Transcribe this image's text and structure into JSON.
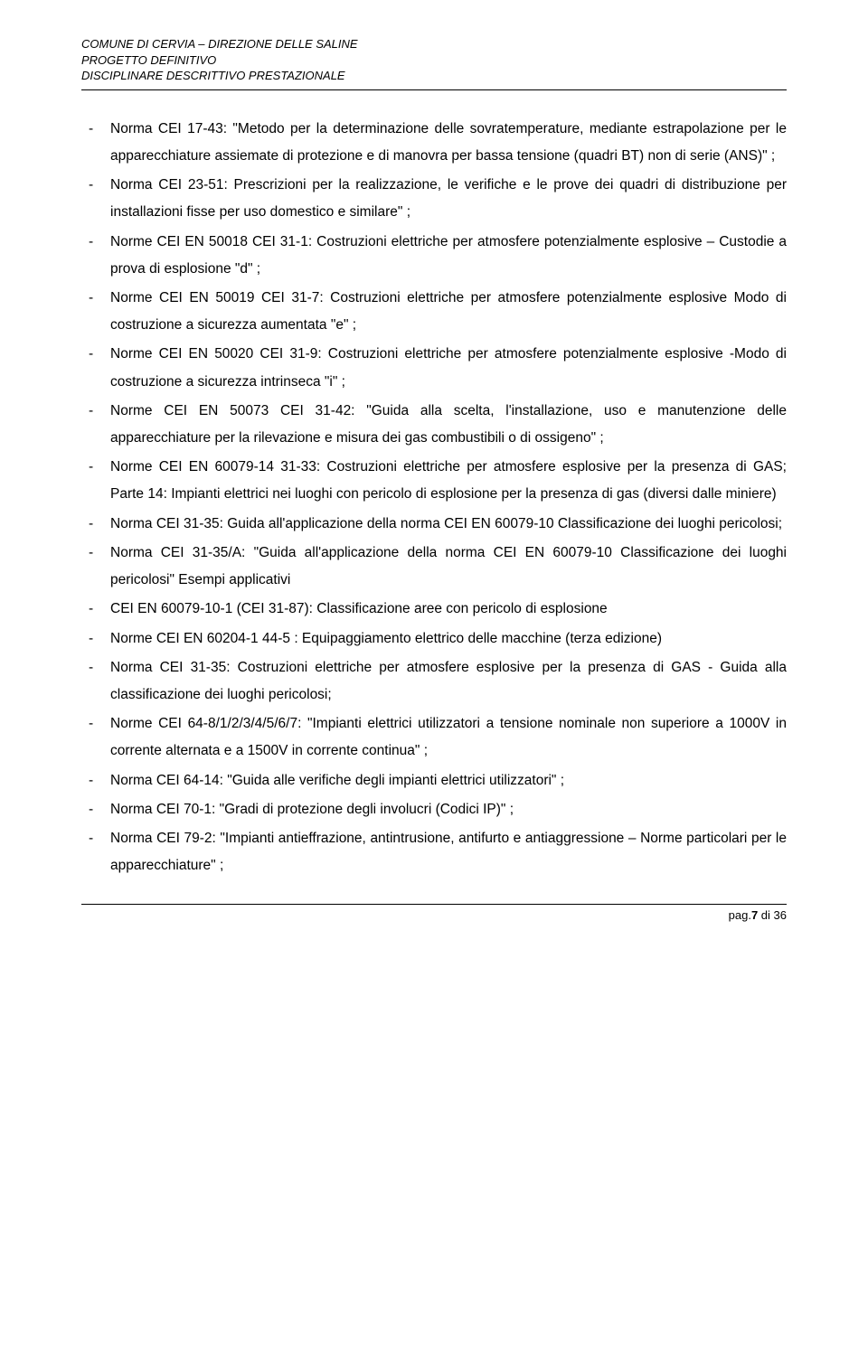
{
  "header": {
    "line1": "COMUNE DI CERVIA – DIREZIONE DELLE SALINE",
    "line2": "PROGETTO DEFINITIVO",
    "line3": "DISCIPLINARE DESCRITTIVO PRESTAZIONALE"
  },
  "items": [
    "Norma CEI 17-43: \"Metodo per la determinazione delle sovratemperature, mediante estrapolazione per le apparecchiature assiemate di protezione e di manovra per bassa tensione (quadri BT) non di serie (ANS)\" ;",
    "Norma CEI 23-51: Prescrizioni per la realizzazione, le verifiche e le prove dei quadri di distribuzione per installazioni fisse per uso domestico e similare\" ;",
    "Norme CEI EN 50018 CEI 31-1: Costruzioni elettriche per atmosfere potenzialmente esplosive – Custodie a prova di esplosione \"d\" ;",
    "Norme CEI EN 50019 CEI 31-7: Costruzioni elettriche per atmosfere potenzialmente esplosive Modo di costruzione a sicurezza aumentata \"e\" ;",
    "Norme CEI EN 50020 CEI 31-9: Costruzioni elettriche per atmosfere potenzialmente esplosive -Modo di costruzione a sicurezza intrinseca \"i\" ;",
    "Norme CEI EN 50073 CEI 31-42: \"Guida alla scelta, l'installazione, uso e manutenzione delle apparecchiature per la rilevazione e misura dei gas combustibili o di ossigeno\" ;",
    "Norme CEI EN 60079-14 31-33: Costruzioni elettriche per atmosfere esplosive per la presenza di GAS; Parte 14: Impianti elettrici nei luoghi con pericolo di esplosione per la presenza di gas (diversi dalle miniere)",
    "Norma CEI 31-35: Guida all'applicazione della norma CEI EN 60079-10 Classificazione dei luoghi pericolosi;",
    "Norma CEI 31-35/A: \"Guida all'applicazione della norma CEI EN 60079-10 Classificazione dei luoghi pericolosi\" Esempi applicativi",
    "CEI EN 60079-10-1 (CEI 31-87): Classificazione aree con pericolo di esplosione",
    "Norme CEI EN 60204-1 44-5 : Equipaggiamento elettrico delle macchine (terza edizione)",
    "Norma CEI 31-35: Costruzioni elettriche per atmosfere esplosive per la presenza di GAS - Guida alla classificazione dei luoghi pericolosi;",
    "Norme CEI 64-8/1/2/3/4/5/6/7: \"Impianti elettrici utilizzatori a tensione nominale non superiore a 1000V in corrente alternata e a 1500V in corrente continua\" ;",
    "Norma CEI 64-14: \"Guida alle verifiche degli impianti elettrici utilizzatori\" ;",
    "Norma CEI 70-1: \"Gradi di protezione degli involucri (Codici IP)\" ;",
    "Norma CEI 79-2: \"Impianti antieffrazione, antintrusione, antifurto e antiaggressione – Norme particolari per le apparecchiature\" ;"
  ],
  "footer": {
    "prefix": "pag.",
    "current": "7",
    "suffix": " di 36"
  }
}
